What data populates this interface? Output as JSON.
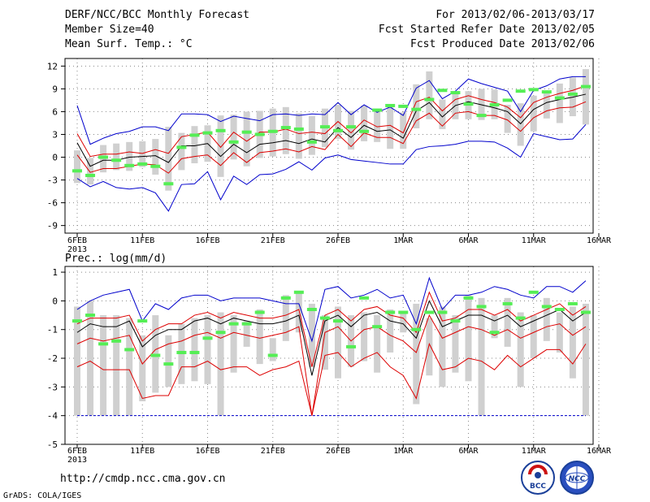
{
  "header": {
    "title": "DERF/NCC/BCC Monthly Forecast",
    "member_size": "Member Size=40",
    "variable": "Mean Surf. Temp.: °C",
    "period": "For 2013/02/06-2013/03/17",
    "started": "Fcst Started Refer Date 2013/02/05",
    "produced": "Fcst Produced Date 2013/02/06"
  },
  "footer": {
    "url": "http://cmdp.ncc.cma.gov.cn",
    "credit": "GrADS: COLA/IGES",
    "logo_left": "BCC",
    "logo_right": "NCC"
  },
  "colors": {
    "mean": "#000000",
    "spread": "#dd0000",
    "extreme": "#0000cc",
    "observed": "#55ee55",
    "box": "#d0d0d0"
  },
  "chart_data": [
    {
      "type": "line",
      "title": "Mean Surf. Temp.: °C",
      "x_ticks": [
        "6FEB",
        "11FEB",
        "16FEB",
        "21FEB",
        "26FEB",
        "1MAR",
        "6MAR",
        "11MAR",
        "16MAR"
      ],
      "x_year_label": "2013",
      "y_ticks": [
        -9,
        -6,
        -3,
        0,
        3,
        6,
        9,
        12
      ],
      "ylim": [
        -10,
        13
      ],
      "days": 40,
      "series": [
        {
          "name": "max",
          "values": [
            6.8,
            1.7,
            2.5,
            3.1,
            3.4,
            4.0,
            4.0,
            3.5,
            5.7,
            5.7,
            5.6,
            4.7,
            5.4,
            5.1,
            4.8,
            5.6,
            5.7,
            5.5,
            5.7,
            5.6,
            7.2,
            5.6,
            6.9,
            5.9,
            6.6,
            5.5,
            9.1,
            10.1,
            7.7,
            8.7,
            10.3,
            9.7,
            9.2,
            8.7,
            6.0,
            8.8,
            9.4,
            10.3,
            10.6,
            10.6
          ]
        },
        {
          "name": "upper",
          "values": [
            3.1,
            0.1,
            0.4,
            0.4,
            0.7,
            0.5,
            1.0,
            0.5,
            2.7,
            3.0,
            3.3,
            1.3,
            3.3,
            2.1,
            3.3,
            3.3,
            3.7,
            3.1,
            3.3,
            3.1,
            4.7,
            3.2,
            4.9,
            4.0,
            4.2,
            3.2,
            7.3,
            7.9,
            6.1,
            7.6,
            8.1,
            7.6,
            7.2,
            6.6,
            5.2,
            7.2,
            7.9,
            8.4,
            8.8,
            9.4
          ]
        },
        {
          "name": "mean",
          "values": [
            1.9,
            -1.2,
            -0.4,
            -0.4,
            0.0,
            0.1,
            0.2,
            -0.7,
            1.5,
            1.5,
            1.8,
            0.1,
            1.7,
            0.6,
            1.7,
            1.9,
            2.2,
            1.8,
            2.4,
            2.0,
            3.9,
            2.6,
            4.2,
            3.4,
            3.6,
            2.5,
            6.1,
            7.2,
            5.3,
            6.8,
            7.3,
            6.9,
            6.5,
            6.0,
            4.4,
            6.3,
            7.2,
            7.6,
            7.9,
            8.3
          ]
        },
        {
          "name": "lower",
          "values": [
            0.3,
            -2.0,
            -1.5,
            -1.5,
            -1.2,
            -0.9,
            -1.0,
            -2.1,
            -0.2,
            0.1,
            0.3,
            -1.1,
            0.6,
            -0.7,
            0.6,
            0.8,
            1.1,
            0.7,
            1.4,
            1.0,
            3.0,
            1.4,
            3.2,
            2.6,
            2.6,
            1.8,
            4.8,
            5.8,
            4.1,
            5.8,
            6.0,
            5.5,
            5.5,
            4.9,
            3.4,
            5.2,
            6.1,
            6.5,
            6.6,
            7.3
          ]
        },
        {
          "name": "min",
          "values": [
            -2.8,
            -3.9,
            -3.2,
            -4.0,
            -4.2,
            -4.0,
            -4.7,
            -7.1,
            -3.6,
            -3.5,
            -1.9,
            -5.6,
            -2.5,
            -3.6,
            -2.3,
            -2.2,
            -1.6,
            -0.6,
            -1.7,
            -0.1,
            0.3,
            -0.3,
            -0.5,
            -0.7,
            -0.9,
            -0.9,
            1.0,
            1.4,
            1.5,
            1.7,
            2.1,
            2.1,
            2.0,
            1.2,
            0.0,
            3.1,
            2.7,
            2.3,
            2.4,
            4.3
          ]
        },
        {
          "name": "observed",
          "values": [
            -1.8,
            -2.4,
            0.0,
            -0.4,
            -1.1,
            -0.9,
            -1.2,
            -3.5,
            1.3,
            2.9,
            3.2,
            3.5,
            2.0,
            3.3,
            3.0,
            3.4,
            3.9,
            3.7,
            2.0,
            4.0,
            3.5,
            4.0,
            3.4,
            6.2,
            6.8,
            6.7,
            6.3,
            7.6,
            8.8,
            8.5,
            7.0,
            5.5,
            6.9,
            7.5,
            8.7,
            8.9,
            8.6,
            7.8,
            8.3,
            9.3
          ]
        },
        {
          "name": "box_top",
          "values": [
            0.9,
            -0.1,
            1.6,
            1.8,
            2.0,
            2.1,
            2.4,
            4.0,
            3.2,
            4.1,
            4.2,
            5.5,
            5.6,
            6.0,
            6.1,
            6.4,
            6.6,
            5.8,
            5.4,
            6.4,
            6.9,
            6.1,
            6.8,
            6.2,
            6.8,
            5.9,
            9.6,
            11.3,
            7.6,
            8.5,
            8.7,
            9.0,
            8.9,
            6.9,
            7.1,
            8.1,
            8.6,
            9.7,
            10.5,
            11.6
          ]
        },
        {
          "name": "box_bottom",
          "values": [
            -3.4,
            -3.6,
            -2.0,
            -1.7,
            -1.8,
            -1.3,
            -2.3,
            -4.4,
            -1.7,
            -0.8,
            -0.6,
            -2.6,
            -0.3,
            -1.2,
            -0.1,
            0.1,
            0.4,
            -0.2,
            0.3,
            1.3,
            2.4,
            1.0,
            2.1,
            2.0,
            1.1,
            1.1,
            3.8,
            5.0,
            3.7,
            5.0,
            5.0,
            4.9,
            5.0,
            3.2,
            1.5,
            3.4,
            5.1,
            4.5,
            5.4,
            4.3
          ]
        }
      ]
    },
    {
      "type": "line",
      "title": "Prec.: log(mm/d)",
      "x_ticks": [
        "6FEB",
        "11FEB",
        "16FEB",
        "21FEB",
        "26FEB",
        "1MAR",
        "6MAR",
        "11MAR",
        "16MAR"
      ],
      "x_year_label": "2013",
      "y_ticks": [
        -5,
        -4,
        -3,
        -2,
        -1,
        0,
        1
      ],
      "ylim": [
        -5,
        1.2
      ],
      "days": 40,
      "series": [
        {
          "name": "max",
          "values": [
            -0.3,
            0.0,
            0.2,
            0.3,
            0.4,
            -0.7,
            -0.1,
            -0.3,
            0.1,
            0.2,
            0.2,
            0.0,
            0.1,
            0.1,
            0.1,
            0.0,
            -0.1,
            -0.1,
            -1.4,
            0.4,
            0.5,
            0.1,
            0.2,
            0.4,
            0.1,
            0.2,
            -0.8,
            0.8,
            -0.3,
            0.2,
            0.2,
            0.3,
            0.5,
            0.4,
            0.2,
            0.1,
            0.5,
            0.5,
            0.3,
            0.7
          ]
        },
        {
          "name": "upper",
          "values": [
            -0.8,
            -0.6,
            -0.6,
            -0.6,
            -0.5,
            -1.4,
            -1.0,
            -0.8,
            -0.8,
            -0.5,
            -0.4,
            -0.6,
            -0.4,
            -0.5,
            -0.6,
            -0.6,
            -0.5,
            -0.3,
            -2.3,
            -0.5,
            -0.3,
            -0.7,
            -0.3,
            -0.2,
            -0.5,
            -0.6,
            -1.1,
            0.3,
            -0.7,
            -0.6,
            -0.3,
            -0.3,
            -0.5,
            -0.3,
            -0.7,
            -0.5,
            -0.3,
            -0.1,
            -0.5,
            -0.2
          ]
        },
        {
          "name": "mean",
          "values": [
            -1.1,
            -0.8,
            -0.9,
            -0.9,
            -0.7,
            -1.6,
            -1.2,
            -1.0,
            -1.0,
            -0.7,
            -0.6,
            -0.8,
            -0.6,
            -0.7,
            -0.8,
            -0.8,
            -0.7,
            -0.5,
            -2.6,
            -0.7,
            -0.5,
            -0.9,
            -0.5,
            -0.4,
            -0.7,
            -0.8,
            -1.3,
            0.0,
            -0.9,
            -0.7,
            -0.5,
            -0.5,
            -0.7,
            -0.5,
            -0.9,
            -0.7,
            -0.5,
            -0.3,
            -0.7,
            -0.4
          ]
        },
        {
          "name": "lower",
          "values": [
            -1.5,
            -1.3,
            -1.4,
            -1.3,
            -1.2,
            -2.2,
            -1.7,
            -1.5,
            -1.4,
            -1.2,
            -1.1,
            -1.3,
            -1.1,
            -1.2,
            -1.3,
            -1.2,
            -1.1,
            -0.9,
            -4.0,
            -1.1,
            -0.9,
            -1.4,
            -1.0,
            -0.9,
            -1.2,
            -1.4,
            -1.8,
            -0.5,
            -1.3,
            -1.1,
            -0.9,
            -1.0,
            -1.2,
            -1.0,
            -1.3,
            -1.1,
            -0.9,
            -0.8,
            -1.2,
            -0.9
          ]
        },
        {
          "name": "min",
          "values": [
            -2.3,
            -2.1,
            -2.4,
            -2.4,
            -2.4,
            -3.4,
            -3.3,
            -3.3,
            -2.3,
            -2.3,
            -2.1,
            -2.4,
            -2.3,
            -2.3,
            -2.6,
            -2.4,
            -2.3,
            -2.1,
            -4.0,
            -1.9,
            -1.8,
            -2.3,
            -2.0,
            -1.8,
            -2.3,
            -2.6,
            -3.4,
            -1.5,
            -2.4,
            -2.3,
            -2.0,
            -2.1,
            -2.4,
            -1.9,
            -2.3,
            -2.0,
            -1.7,
            -1.7,
            -2.2,
            -1.5
          ]
        },
        {
          "name": "observed",
          "values": [
            -0.7,
            -0.5,
            -1.5,
            -1.4,
            -1.7,
            -0.7,
            -1.9,
            -2.2,
            -1.8,
            -1.8,
            -1.3,
            -1.1,
            -0.8,
            -0.8,
            -0.4,
            -1.9,
            0.1,
            0.3,
            -0.3,
            -0.6,
            -0.7,
            -1.6,
            0.1,
            -0.9,
            -0.4,
            -0.4,
            -1.0,
            -0.4,
            -0.4,
            -0.7,
            0.1,
            -0.2,
            -1.1,
            -0.1,
            -0.6,
            0.3,
            -0.2,
            -0.3,
            -0.1,
            -0.4
          ]
        },
        {
          "name": "box_top",
          "values": [
            -0.2,
            0.0,
            -0.5,
            -0.5,
            -0.6,
            -1.2,
            -0.5,
            -1.2,
            -0.8,
            -0.6,
            -0.5,
            -0.4,
            -0.5,
            -0.7,
            -0.3,
            -1.3,
            0.2,
            0.3,
            -0.1,
            -0.5,
            -0.2,
            -0.5,
            -0.4,
            -0.5,
            -0.3,
            -0.4,
            -0.1,
            -0.6,
            -0.2,
            -0.5,
            0.2,
            0.1,
            -0.5,
            0.1,
            -0.4,
            -0.5,
            0.1,
            -0.4,
            -0.2,
            -0.1
          ]
        },
        {
          "name": "box_bottom",
          "values": [
            -4.0,
            -4.0,
            -4.0,
            -4.0,
            -4.0,
            -3.5,
            -3.2,
            -3.0,
            -2.9,
            -2.8,
            -2.9,
            -4.0,
            -2.5,
            -1.6,
            -2.2,
            -2.1,
            -1.4,
            -1.1,
            -2.3,
            -2.4,
            -2.7,
            -2.3,
            -2.1,
            -2.5,
            -1.8,
            -1.1,
            -3.6,
            -2.6,
            -3.0,
            -2.5,
            -2.8,
            -4.0,
            -1.3,
            -1.6,
            -3.0,
            -2.0,
            -1.4,
            -1.8,
            -2.7,
            -4.0
          ]
        },
        {
          "name": "floor",
          "values": [
            -4.0,
            -4.0,
            -4.0,
            -4.0,
            -4.0,
            -4.0,
            -4.0,
            -4.0,
            -4.0,
            -4.0,
            -4.0,
            -4.0,
            -4.0,
            -4.0,
            -4.0,
            -4.0,
            -4.0,
            -4.0,
            -4.0,
            -4.0,
            -4.0,
            -4.0,
            -4.0,
            -4.0,
            -4.0,
            -4.0,
            -4.0,
            -4.0,
            -4.0,
            -4.0,
            -4.0,
            -4.0,
            -4.0,
            -4.0,
            -4.0,
            -4.0,
            -4.0,
            -4.0,
            -4.0,
            -4.0
          ]
        }
      ]
    }
  ]
}
